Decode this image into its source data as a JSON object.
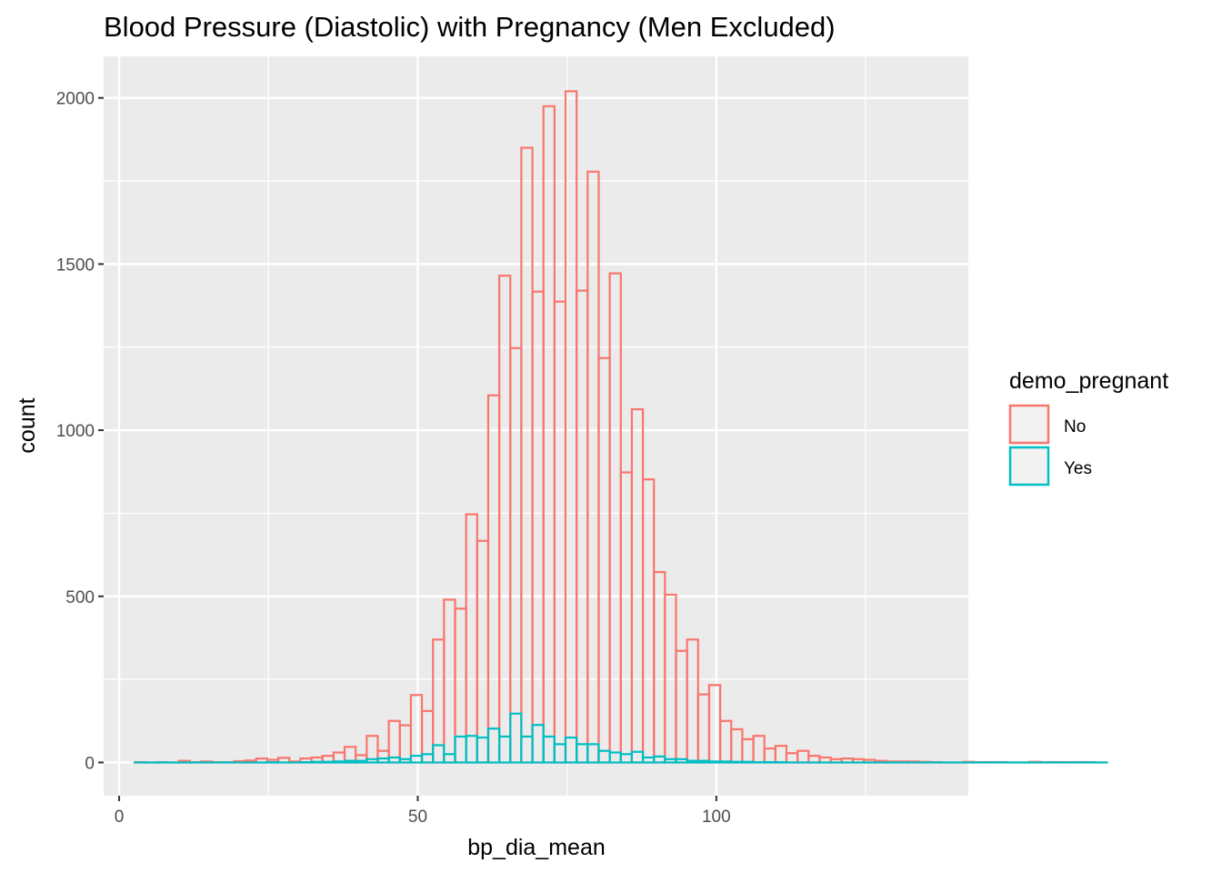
{
  "chart_data": {
    "type": "histogram",
    "title": "Blood Pressure (Diastolic) with Pregnancy (Men Excluded)",
    "xlabel": "bp_dia_mean",
    "ylabel": "count",
    "xlim": [
      -2.6,
      142.2
    ],
    "ylim": [
      -100,
      2125
    ],
    "x_ticks": [
      0,
      50,
      100
    ],
    "y_ticks": [
      0,
      500,
      1000,
      1500,
      2000
    ],
    "x_tick_labels": [
      "0",
      "50",
      "100"
    ],
    "y_tick_labels": [
      "0",
      "500",
      "1000",
      "1500",
      "2000"
    ],
    "grid": true,
    "bin_start": 2.6,
    "bin_width": 1.85,
    "legend": {
      "title": "demo_pregnant",
      "position": "right",
      "entries": [
        {
          "label": "No",
          "color": "#F8766D"
        },
        {
          "label": "Yes",
          "color": "#00BFC4"
        }
      ]
    },
    "series": [
      {
        "name": "No",
        "color": "#F8766D",
        "values": [
          1,
          0,
          1,
          0,
          5,
          1,
          3,
          1,
          1,
          4,
          6,
          12,
          8,
          14,
          3,
          12,
          15,
          20,
          30,
          47,
          22,
          80,
          35,
          125,
          112,
          203,
          155,
          370,
          490,
          463,
          747,
          667,
          1105,
          1465,
          1247,
          1850,
          1417,
          1975,
          1387,
          2020,
          1420,
          1778,
          1217,
          1472,
          873,
          1063,
          852,
          573,
          505,
          336,
          370,
          205,
          233,
          125,
          100,
          70,
          80,
          42,
          50,
          28,
          35,
          20,
          15,
          10,
          12,
          10,
          8,
          5,
          3,
          3,
          3,
          2,
          1,
          0,
          0,
          2,
          1,
          1,
          1,
          0,
          0,
          2,
          1,
          1,
          1,
          1,
          1,
          0
        ]
      },
      {
        "name": "Yes",
        "color": "#00BFC4",
        "values": [
          0,
          0,
          0,
          0,
          0,
          0,
          0,
          0,
          0,
          0,
          0,
          0,
          1,
          0,
          0,
          1,
          2,
          2,
          3,
          5,
          5,
          10,
          12,
          15,
          10,
          20,
          25,
          52,
          25,
          78,
          80,
          75,
          102,
          78,
          147,
          78,
          113,
          78,
          55,
          75,
          55,
          55,
          35,
          30,
          25,
          32,
          15,
          18,
          10,
          10,
          5,
          5,
          3,
          3,
          2,
          2,
          1,
          1,
          1,
          0,
          0,
          0,
          0,
          0,
          0,
          0,
          0,
          0,
          0,
          0,
          0,
          0,
          0,
          0,
          0,
          0,
          0,
          0,
          0,
          0,
          0,
          0,
          0,
          0,
          0,
          0,
          0,
          0
        ]
      }
    ]
  }
}
